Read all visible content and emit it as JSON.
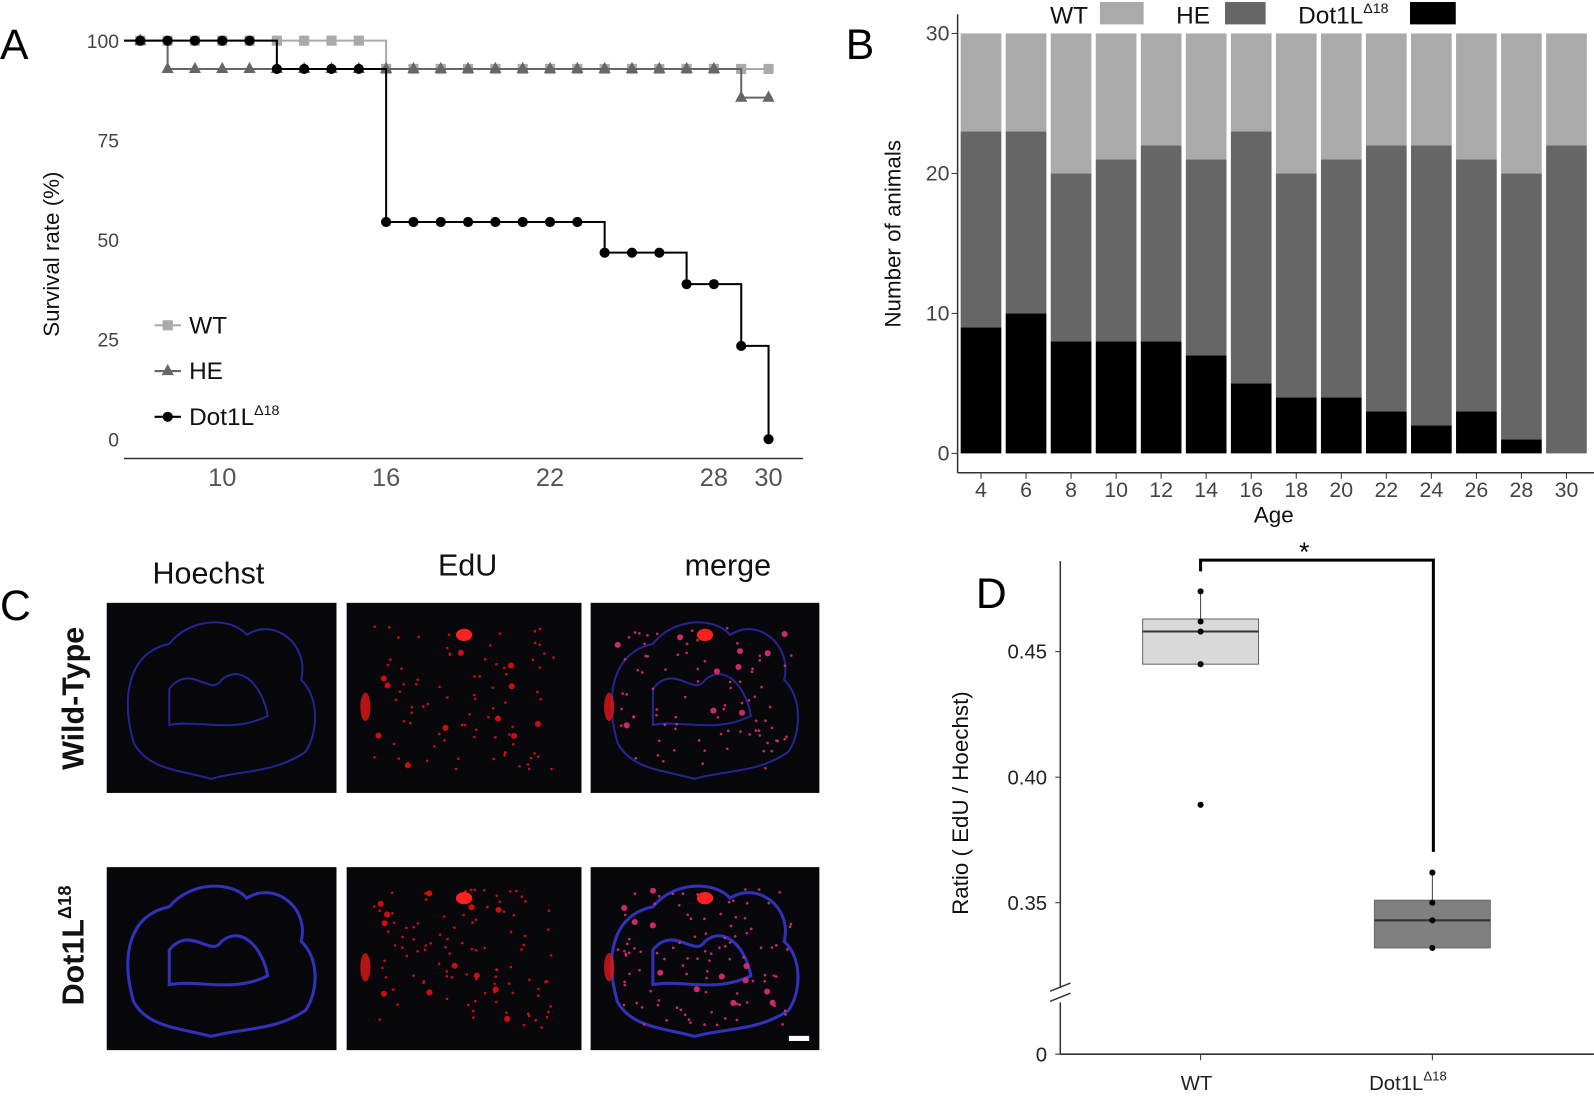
{
  "panels": {
    "a": "A",
    "b": "B",
    "c": "C",
    "d": "D"
  },
  "colors": {
    "wt": "#aaaaaa",
    "he": "#666666",
    "dot1l": "#000000",
    "wt_box": "#d9d9d9",
    "dot1l_box": "#808080"
  },
  "chart_data": [
    {
      "type": "line",
      "subtype": "kaplan-meier",
      "ylabel": "Survival rate (%)",
      "xlabel": "",
      "ylim": [
        0,
        100
      ],
      "yticks": [
        "0",
        "25",
        "50",
        "75",
        "100"
      ],
      "xticks": [
        "10",
        "16",
        "22",
        "28",
        "30"
      ],
      "legend": [
        {
          "name": "WT",
          "marker": "square"
        },
        {
          "name": "HE",
          "marker": "triangle"
        },
        {
          "name": "Dot1L",
          "sup": "Δ18",
          "marker": "circle"
        }
      ],
      "legend_position": "bottom-left",
      "x": [
        7,
        8,
        9,
        10,
        11,
        12,
        13,
        14,
        15,
        16,
        17,
        18,
        19,
        20,
        21,
        22,
        23,
        24,
        25,
        26,
        27,
        28,
        29,
        30
      ],
      "series": [
        {
          "name": "WT",
          "values": [
            100,
            100,
            100,
            100,
            100,
            100,
            100,
            100,
            100,
            92.9,
            92.9,
            92.9,
            92.9,
            92.9,
            92.9,
            92.9,
            92.9,
            92.9,
            92.9,
            92.9,
            92.9,
            92.9,
            92.9,
            92.9
          ]
        },
        {
          "name": "HE",
          "values": [
            100,
            92.9,
            92.9,
            92.9,
            92.9,
            92.9,
            92.9,
            92.9,
            92.9,
            92.9,
            92.9,
            92.9,
            92.9,
            92.9,
            92.9,
            92.9,
            92.9,
            92.9,
            92.9,
            92.9,
            92.9,
            92.9,
            85.7,
            85.7
          ]
        },
        {
          "name": "Dot1L Δ18",
          "values": [
            100,
            100,
            100,
            100,
            100,
            92.9,
            92.9,
            92.9,
            92.9,
            54.5,
            54.5,
            54.5,
            54.5,
            54.5,
            54.5,
            54.5,
            54.5,
            46.8,
            46.8,
            46.8,
            38.9,
            38.9,
            23.4,
            0
          ]
        }
      ]
    },
    {
      "type": "bar",
      "stacked": true,
      "xlabel": "Age",
      "ylabel": "Number of animals",
      "ylim": [
        0,
        30
      ],
      "yticks": [
        "0",
        "10",
        "20",
        "30"
      ],
      "categories": [
        "4",
        "6",
        "8",
        "10",
        "12",
        "14",
        "16",
        "18",
        "20",
        "22",
        "24",
        "26",
        "28",
        "30"
      ],
      "legend": [
        {
          "name": "WT"
        },
        {
          "name": "HE"
        },
        {
          "name": "Dot1L",
          "sup": "Δ18"
        }
      ],
      "legend_position": "top",
      "series": [
        {
          "name": "Dot1L Δ18",
          "values": [
            9,
            10,
            8,
            8,
            8,
            7,
            5,
            4,
            4,
            3,
            2,
            3,
            1,
            0
          ]
        },
        {
          "name": "HE",
          "values": [
            14,
            13,
            12,
            13,
            14,
            14,
            18,
            16,
            17,
            19,
            20,
            18,
            19,
            22
          ]
        },
        {
          "name": "WT",
          "values": [
            7,
            7,
            10,
            9,
            8,
            9,
            7,
            10,
            9,
            8,
            8,
            9,
            10,
            8
          ]
        }
      ]
    },
    {
      "type": "box",
      "ylabel": "Ratio ( EdU / Hoechst)",
      "yticks": [
        "0",
        "0.35",
        "0.40",
        "0.45"
      ],
      "ylim": [
        0.32,
        0.48
      ],
      "axis_break": true,
      "categories": [
        {
          "name": "WT"
        },
        {
          "name": "Dot1L",
          "sup": "Δ18"
        }
      ],
      "significance": "*",
      "boxes": [
        {
          "name": "WT",
          "q1": 0.445,
          "median": 0.458,
          "q3": 0.463,
          "whisker_high": 0.474,
          "points": [
            0.474,
            0.462,
            0.458,
            0.445,
            0.389
          ]
        },
        {
          "name": "Dot1L Δ18",
          "q1": 0.332,
          "median": 0.343,
          "q3": 0.351,
          "whisker_high": 0.362,
          "points": [
            0.362,
            0.35,
            0.343,
            0.332
          ]
        }
      ]
    }
  ],
  "microscopy": {
    "columns": [
      "Hoechst",
      "EdU",
      "merge"
    ],
    "rows": [
      {
        "label": "Wild-Type"
      },
      {
        "label": "Dot1L",
        "sup": "Δ18"
      }
    ]
  }
}
